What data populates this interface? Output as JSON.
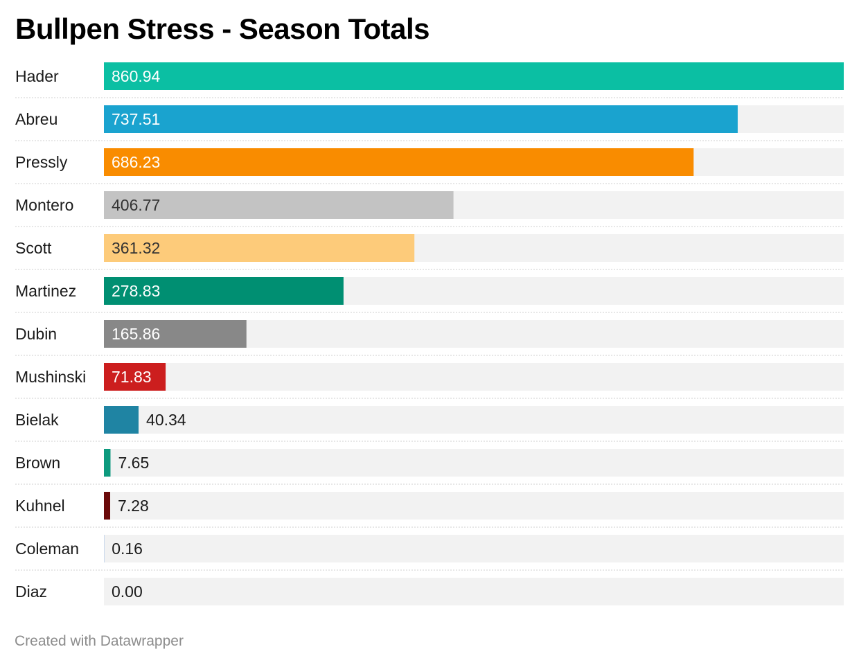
{
  "chart_data": {
    "type": "bar",
    "orientation": "horizontal",
    "title": "Bullpen Stress - Season Totals",
    "xlim": [
      0,
      860.94
    ],
    "grid": false,
    "legend": "none",
    "categories": [
      "Hader",
      "Abreu",
      "Pressly",
      "Montero",
      "Scott",
      "Martinez",
      "Dubin",
      "Mushinski",
      "Bielak",
      "Brown",
      "Kuhnel",
      "Coleman",
      "Diaz"
    ],
    "values": [
      860.94,
      737.51,
      686.23,
      406.77,
      361.32,
      278.83,
      165.86,
      71.83,
      40.34,
      7.65,
      7.28,
      0.16,
      0.0
    ],
    "value_labels": [
      "860.94",
      "737.51",
      "686.23",
      "406.77",
      "361.32",
      "278.83",
      "165.86",
      "71.83",
      "40.34",
      "7.65",
      "7.28",
      "0.16",
      "0.00"
    ],
    "colors": [
      "#0bbfa3",
      "#1aa3cf",
      "#f98c00",
      "#c3c3c3",
      "#fdcb7a",
      "#008f72",
      "#888888",
      "#cc1e1e",
      "#1f84a3",
      "#0d9a7e",
      "#6b0a0a",
      "#1c6fd4",
      "#bbbbbb"
    ],
    "label_text_colors": [
      "#ffffff",
      "#ffffff",
      "#ffffff",
      "#333333",
      "#333333",
      "#ffffff",
      "#ffffff",
      "#ffffff",
      "#1a1a1a",
      "#1a1a1a",
      "#1a1a1a",
      "#1a1a1a",
      "#1a1a1a"
    ],
    "track_color": "#f2f2f2"
  },
  "footer": {
    "credit": "Created with Datawrapper"
  }
}
